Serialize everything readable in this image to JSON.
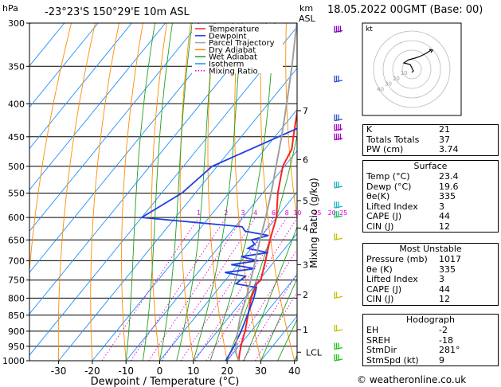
{
  "header": {
    "pressure_unit": "hPa",
    "location": "-23°23'S  150°29'E  10m  ASL",
    "height_unit": "km",
    "height_ref": "ASL",
    "date": "18.05.2022  00GMT  (Base: 00)"
  },
  "colors": {
    "temperature": "#ff2020",
    "dewpoint": "#2040e0",
    "parcel": "#a0a0a0",
    "dry_adiabat": "#ff8c00",
    "wet_adiabat": "#20a020",
    "isotherm": "#1e90ff",
    "mixing_ratio": "#e000e0",
    "wind": "#20c020"
  },
  "chart_data": {
    "type": "line",
    "xlabel": "Dewpoint / Temperature (°C)",
    "ylabel": "",
    "right_label": "Mixing Ratio (g/kg)",
    "x_ticks": [
      "-30",
      "-20",
      "-10",
      "0",
      "10",
      "20",
      "30",
      "40"
    ],
    "xlim": [
      -35,
      40
    ],
    "ylim": [
      1000,
      300
    ],
    "y_scale": "log",
    "pressure_levels": [
      "300",
      "350",
      "400",
      "450",
      "500",
      "550",
      "600",
      "650",
      "700",
      "750",
      "800",
      "850",
      "900",
      "950",
      "1000"
    ],
    "height_ticks_km": [
      "7",
      "6",
      "5",
      "4",
      "3",
      "2",
      "1",
      "LCL"
    ],
    "height_tick_pressures": [
      410,
      488,
      565,
      623,
      710,
      790,
      895,
      970
    ],
    "mixing_ratio_labels": [
      "1",
      "2",
      "3",
      "4",
      "6",
      "8",
      "10",
      "15",
      "20",
      "25"
    ],
    "legend": [
      "Temperature",
      "Dewpoint",
      "Parcel Trajectory",
      "Dry Adiabat",
      "Wet Adiabat",
      "Isotherm",
      "Mixing Ratio"
    ],
    "legend_position": "top-center",
    "series": [
      {
        "name": "Temperature",
        "p": [
          1000,
          975,
          950,
          925,
          900,
          850,
          800,
          760,
          750,
          700,
          650,
          600,
          550,
          500,
          470,
          450,
          400,
          350,
          300
        ],
        "t": [
          23.4,
          22.0,
          20.6,
          19.4,
          18.2,
          15.2,
          12.0,
          10.2,
          10.5,
          7.2,
          3.5,
          0.0,
          -5.5,
          -10.5,
          -12.0,
          -14.5,
          -21.0,
          -28.5,
          -38.0
        ]
      },
      {
        "name": "Dewpoint",
        "p": [
          1000,
          950,
          900,
          850,
          800,
          770,
          760,
          740,
          730,
          720,
          710,
          700,
          690,
          680,
          670,
          660,
          650,
          640,
          630,
          620,
          600,
          550,
          510,
          500,
          430,
          400,
          350,
          300
        ],
        "t": [
          19.6,
          18.6,
          17.0,
          15.0,
          12.8,
          11.0,
          4.0,
          5.0,
          -2.0,
          6.0,
          -2.0,
          5.0,
          -1.0,
          6.0,
          -1.0,
          0.0,
          -2.0,
          2.0,
          -6.0,
          -8.0,
          -40.0,
          -34.0,
          -32.0,
          -31.5,
          -13.5,
          -15.5,
          -24.0,
          -41.0
        ]
      },
      {
        "name": "Parcel Trajectory",
        "p": [
          1000,
          970,
          950,
          900,
          850,
          800,
          750,
          700,
          650,
          600,
          550,
          500,
          450,
          400,
          350,
          300
        ],
        "t": [
          23.4,
          20.5,
          19.2,
          16.0,
          13.0,
          10.5,
          7.5,
          4.2,
          0.5,
          -3.2,
          -7.5,
          -12.5,
          -18.0,
          -24.5,
          -32.0,
          -41.0
        ]
      }
    ]
  },
  "indices": [
    {
      "k": "K",
      "v": "21"
    },
    {
      "k": "Totals Totals",
      "v": "37"
    },
    {
      "k": "PW (cm)",
      "v": "3.74"
    }
  ],
  "surface": {
    "title": "Surface",
    "rows": [
      {
        "k": "Temp (°C)",
        "v": "23.4"
      },
      {
        "k": "Dewp (°C)",
        "v": "19.6"
      },
      {
        "k": "θe(K)",
        "v": "335"
      },
      {
        "k": "Lifted Index",
        "v": "3"
      },
      {
        "k": "CAPE (J)",
        "v": "44"
      },
      {
        "k": "CIN (J)",
        "v": "12"
      }
    ]
  },
  "most_unstable": {
    "title": "Most Unstable",
    "rows": [
      {
        "k": "Pressure (mb)",
        "v": "1017"
      },
      {
        "k": "θe (K)",
        "v": "335"
      },
      {
        "k": "Lifted Index",
        "v": "3"
      },
      {
        "k": "CAPE (J)",
        "v": "44"
      },
      {
        "k": "CIN (J)",
        "v": "12"
      }
    ]
  },
  "hodograph_table": {
    "title": "Hodograph",
    "rows": [
      {
        "k": "EH",
        "v": "-2"
      },
      {
        "k": "SREH",
        "v": "-18"
      },
      {
        "k": "StmDir",
        "v": "281°"
      },
      {
        "k": "StmSpd (kt)",
        "v": "9"
      }
    ]
  },
  "hodograph": {
    "unit": "kt",
    "ring_labels": [
      "10",
      "20",
      "30",
      "40"
    ]
  },
  "footer": "© weatheronline.co.uk"
}
